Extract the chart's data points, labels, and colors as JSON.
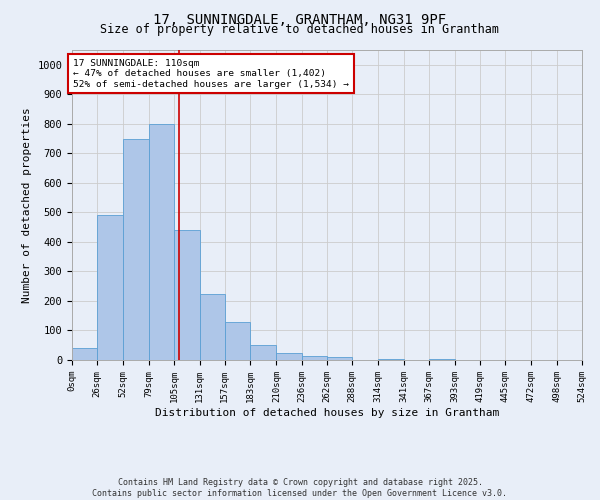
{
  "title_line1": "17, SUNNINGDALE, GRANTHAM, NG31 9PF",
  "title_line2": "Size of property relative to detached houses in Grantham",
  "xlabel": "Distribution of detached houses by size in Grantham",
  "ylabel": "Number of detached properties",
  "bar_values": [
    40,
    490,
    750,
    800,
    440,
    225,
    130,
    50,
    25,
    15,
    10,
    0,
    5,
    0,
    5,
    0,
    0,
    0,
    0,
    0
  ],
  "bin_edges": [
    0,
    26,
    52,
    79,
    105,
    131,
    157,
    183,
    210,
    236,
    262,
    288,
    314,
    341,
    367,
    393,
    419,
    445,
    472,
    498,
    524
  ],
  "tick_labels": [
    "0sqm",
    "26sqm",
    "52sqm",
    "79sqm",
    "105sqm",
    "131sqm",
    "157sqm",
    "183sqm",
    "210sqm",
    "236sqm",
    "262sqm",
    "288sqm",
    "314sqm",
    "341sqm",
    "367sqm",
    "393sqm",
    "419sqm",
    "445sqm",
    "472sqm",
    "498sqm",
    "524sqm"
  ],
  "bar_color": "#aec6e8",
  "bar_edge_color": "#5a9fd4",
  "vline_x": 110,
  "vline_color": "#cc0000",
  "ylim": [
    0,
    1050
  ],
  "yticks": [
    0,
    100,
    200,
    300,
    400,
    500,
    600,
    700,
    800,
    900,
    1000
  ],
  "annotation_title": "17 SUNNINGDALE: 110sqm",
  "annotation_line2": "← 47% of detached houses are smaller (1,402)",
  "annotation_line3": "52% of semi-detached houses are larger (1,534) →",
  "annotation_box_color": "#ffffff",
  "annotation_box_edge": "#cc0000",
  "grid_color": "#cccccc",
  "background_color": "#e8eef8",
  "footer_line1": "Contains HM Land Registry data © Crown copyright and database right 2025.",
  "footer_line2": "Contains public sector information licensed under the Open Government Licence v3.0."
}
